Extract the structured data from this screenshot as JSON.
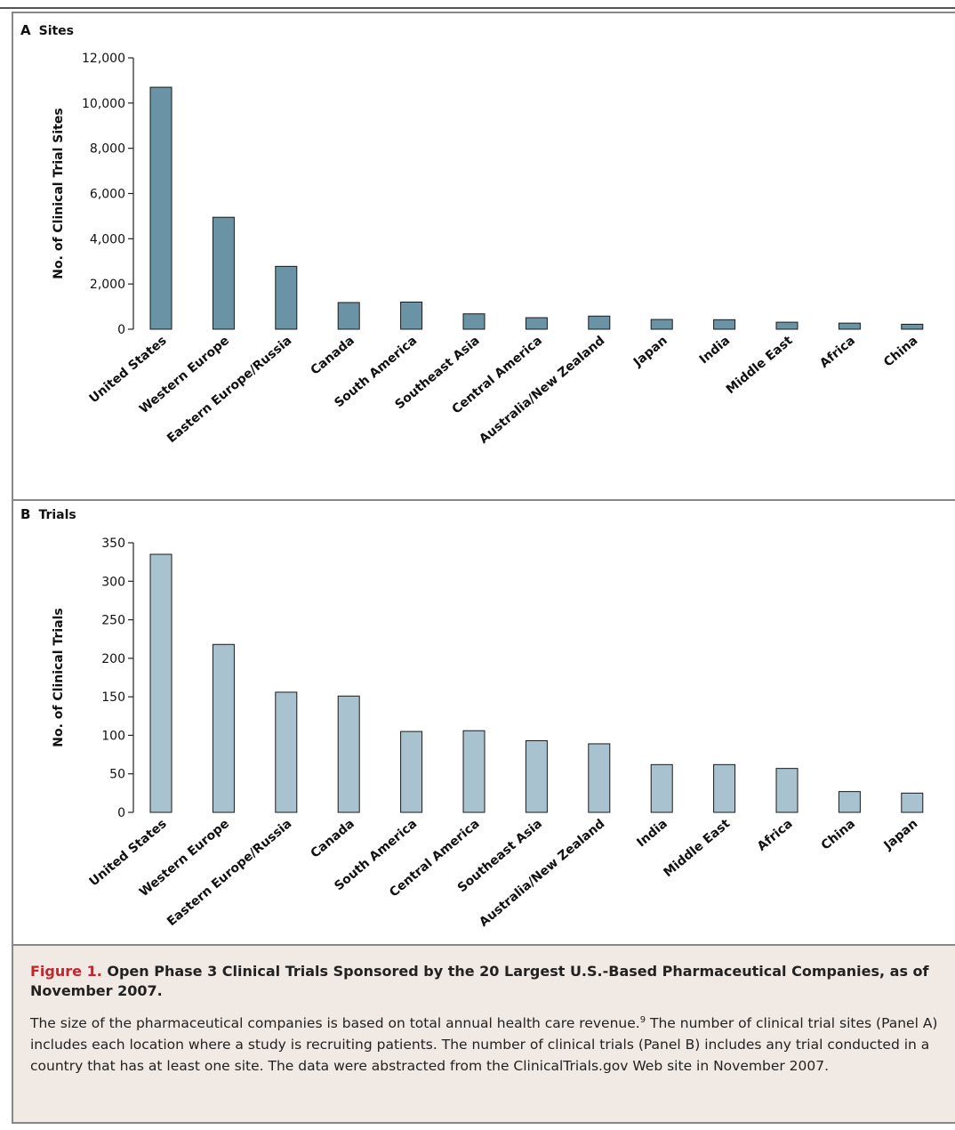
{
  "panels": {
    "a": {
      "letter": "A",
      "title": "Sites"
    },
    "b": {
      "letter": "B",
      "title": "Trials"
    }
  },
  "caption": {
    "figure_label": "Figure 1.",
    "title": "Open Phase 3 Clinical Trials Sponsored by the 20 Largest U.S.-Based Pharmaceutical Companies, as of November 2007.",
    "body_before_ref": "The size of the pharmaceutical companies is based on total annual health care revenue.",
    "ref": "9",
    "body_after_ref": " The number of clinical trial sites (Panel A) includes each location where a study is recruiting patients. The number of clinical trials (Panel B) includes any trial conducted in a country that has at least one site. The data were abstracted from the ClinicalTrials.gov Web site in November 2007."
  },
  "colors": {
    "sites_bar": "#6a93a6",
    "trials_bar": "#a8c2d0",
    "figure_label": "#c0272d",
    "caption_bg": "#f1e9e3"
  },
  "chart_data": [
    {
      "type": "bar",
      "title": "Sites",
      "ylabel": "No. of Clinical Trial Sites",
      "xlabel": "",
      "ylim": [
        0,
        12000
      ],
      "yticks": [
        0,
        2000,
        4000,
        6000,
        8000,
        10000,
        12000
      ],
      "ytick_labels": [
        "0",
        "2,000",
        "4,000",
        "6,000",
        "8,000",
        "10,000",
        "12,000"
      ],
      "categories": [
        "United States",
        "Western Europe",
        "Eastern Europe/Russia",
        "Canada",
        "South America",
        "Southeast Asia",
        "Central America",
        "Australia/New Zealand",
        "Japan",
        "India",
        "Middle East",
        "Africa",
        "China"
      ],
      "values": [
        10700,
        4950,
        2780,
        1180,
        1200,
        680,
        510,
        580,
        430,
        420,
        310,
        270,
        220
      ],
      "grid": false
    },
    {
      "type": "bar",
      "title": "Trials",
      "ylabel": "No. of Clinical Trials",
      "xlabel": "",
      "ylim": [
        0,
        350
      ],
      "yticks": [
        0,
        50,
        100,
        150,
        200,
        250,
        300,
        350
      ],
      "ytick_labels": [
        "0",
        "50",
        "100",
        "150",
        "200",
        "250",
        "300",
        "350"
      ],
      "categories": [
        "United States",
        "Western Europe",
        "Eastern Europe/Russia",
        "Canada",
        "South America",
        "Central America",
        "Southeast Asia",
        "Australia/New Zealand",
        "India",
        "Middle East",
        "Africa",
        "China",
        "Japan"
      ],
      "values": [
        335,
        218,
        156,
        151,
        105,
        106,
        93,
        89,
        62,
        62,
        57,
        27,
        25
      ],
      "grid": false
    }
  ]
}
